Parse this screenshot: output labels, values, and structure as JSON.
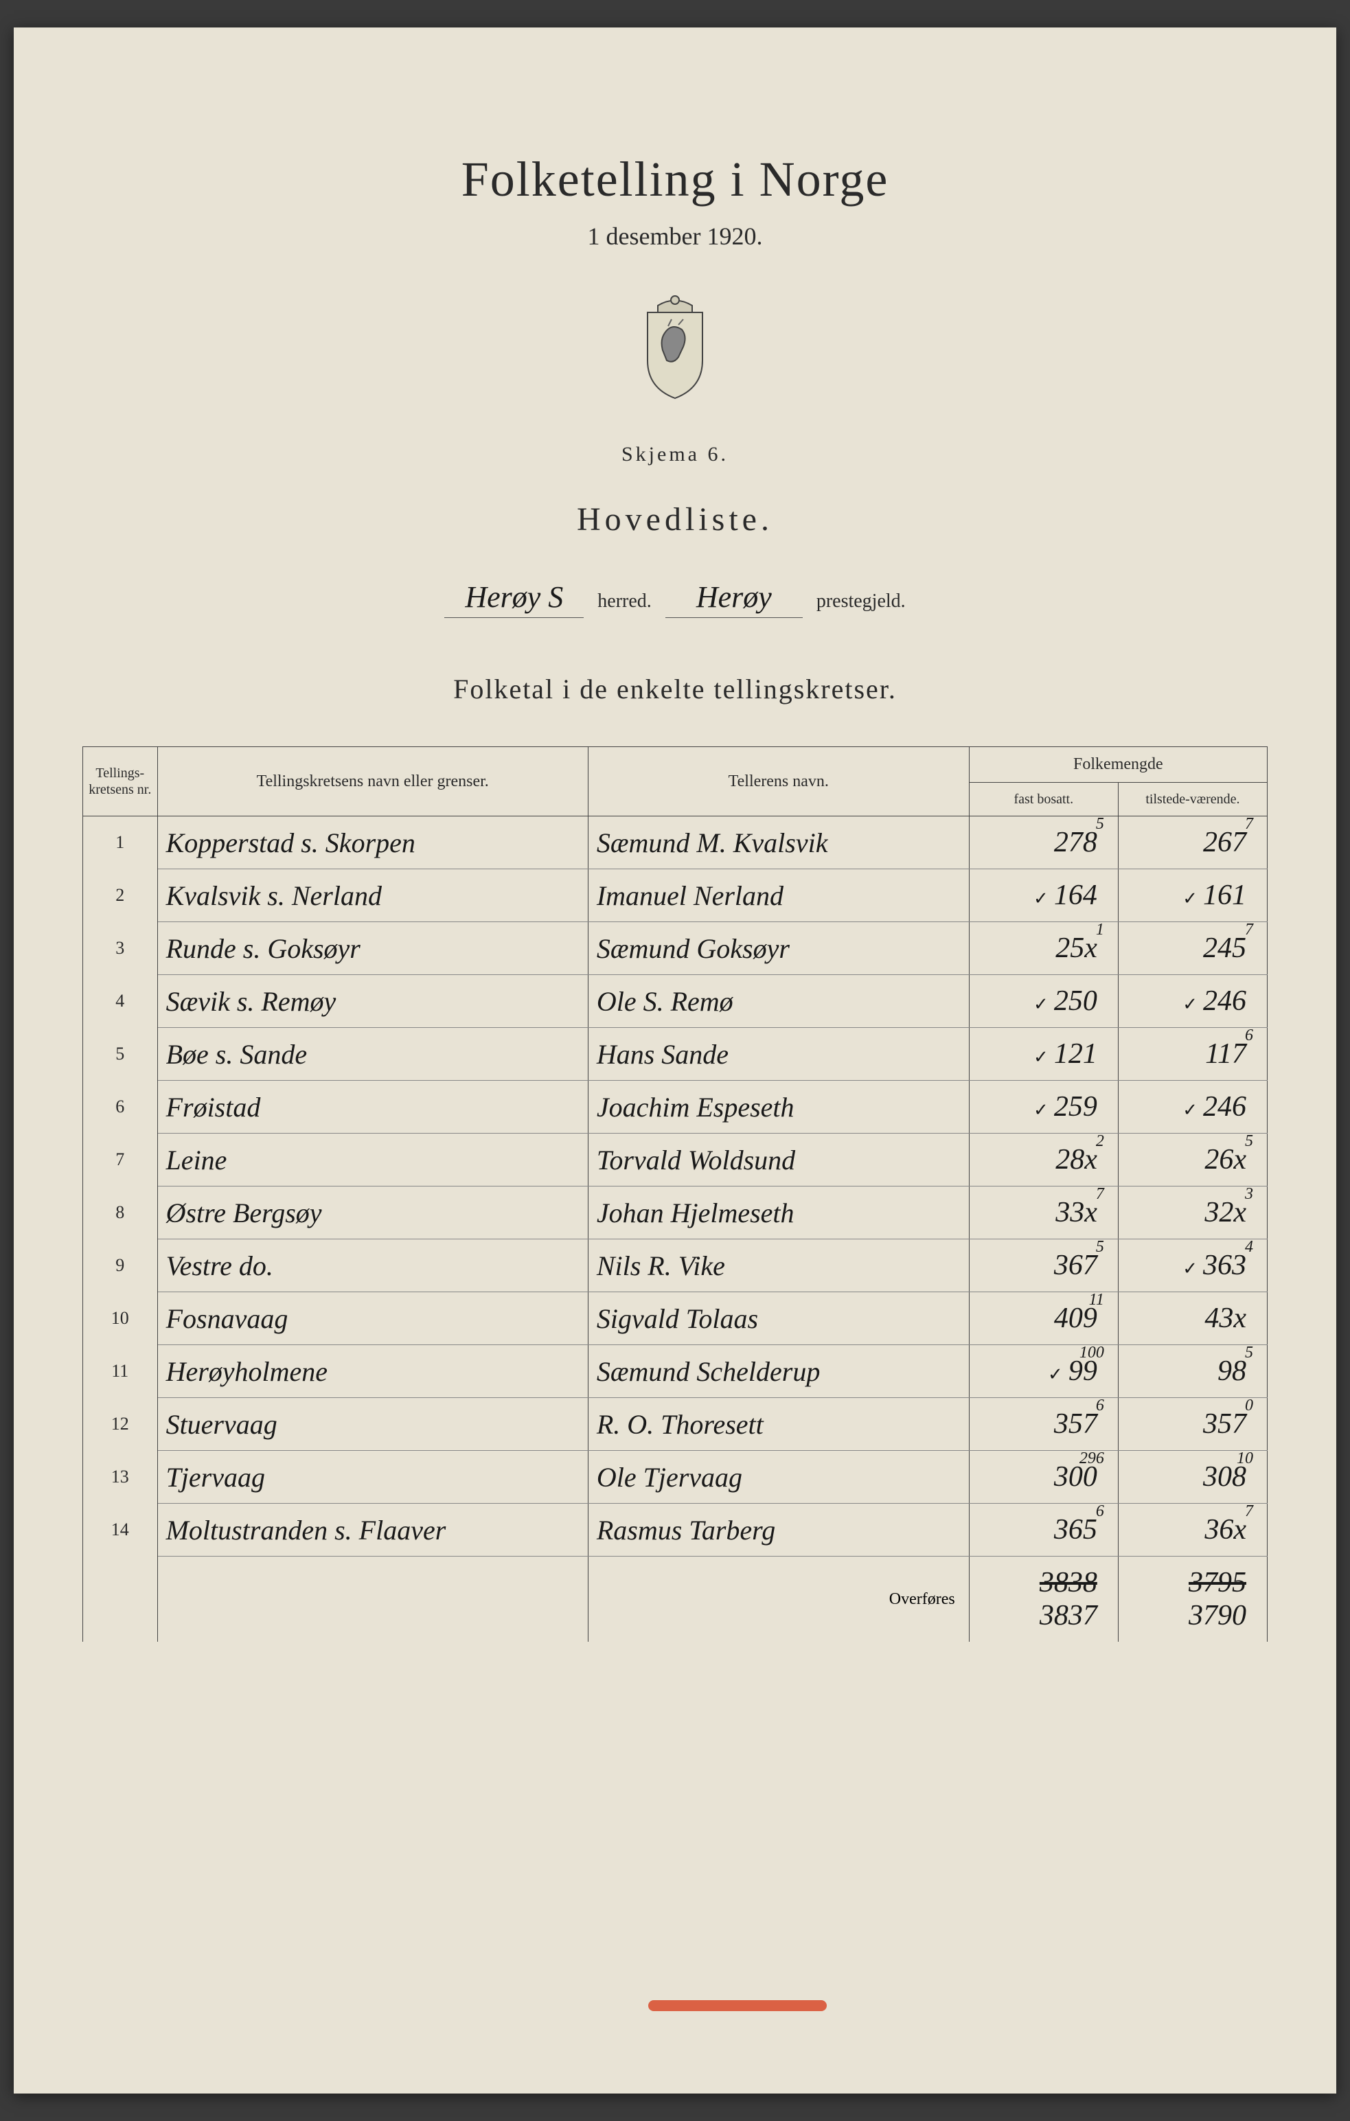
{
  "header": {
    "title": "Folketelling i Norge",
    "date": "1 desember 1920.",
    "schema": "Skjema 6.",
    "doctype": "Hovedliste."
  },
  "location": {
    "herred_value": "Herøy S",
    "herred_label": "herred.",
    "prestegjeld_value": "Herøy",
    "prestegjeld_label": "prestegjeld."
  },
  "table": {
    "title": "Folketal i de enkelte tellingskretser.",
    "headers": {
      "nr": "Tellings-kretsens nr.",
      "krets": "Tellingskretsens navn eller grenser.",
      "teller": "Tellerens navn.",
      "folkemengde": "Folkemengde",
      "bosatt": "fast bosatt.",
      "tilstede": "tilstede-værende."
    },
    "rows": [
      {
        "nr": "1",
        "krets": "Kopperstad s. Skorpen",
        "teller": "Sæmund M. Kvalsvik",
        "bosatt": "278",
        "bosatt_corr": "5",
        "tilstede": "267",
        "tilstede_corr": "7",
        "b_check": false,
        "t_check": false
      },
      {
        "nr": "2",
        "krets": "Kvalsvik s. Nerland",
        "teller": "Imanuel Nerland",
        "bosatt": "164",
        "bosatt_corr": "",
        "tilstede": "161",
        "tilstede_corr": "",
        "b_check": true,
        "t_check": true
      },
      {
        "nr": "3",
        "krets": "Runde s. Goksøyr",
        "teller": "Sæmund Goksøyr",
        "bosatt": "25x",
        "bosatt_corr": "1",
        "tilstede": "245",
        "tilstede_corr": "7",
        "b_check": false,
        "t_check": false
      },
      {
        "nr": "4",
        "krets": "Sævik s. Remøy",
        "teller": "Ole S. Remø",
        "bosatt": "250",
        "bosatt_corr": "",
        "tilstede": "246",
        "tilstede_corr": "",
        "b_check": true,
        "t_check": true
      },
      {
        "nr": "5",
        "krets": "Bøe s. Sande",
        "teller": "Hans Sande",
        "bosatt": "121",
        "bosatt_corr": "",
        "tilstede": "117",
        "tilstede_corr": "6",
        "b_check": true,
        "t_check": false
      },
      {
        "nr": "6",
        "krets": "Frøistad",
        "teller": "Joachim Espeseth",
        "bosatt": "259",
        "bosatt_corr": "",
        "tilstede": "246",
        "tilstede_corr": "",
        "b_check": true,
        "t_check": true
      },
      {
        "nr": "7",
        "krets": "Leine",
        "teller": "Torvald Woldsund",
        "bosatt": "28x",
        "bosatt_corr": "2",
        "tilstede": "26x",
        "tilstede_corr": "5",
        "b_check": false,
        "t_check": false
      },
      {
        "nr": "8",
        "krets": "Østre Bergsøy",
        "teller": "Johan Hjelmeseth",
        "bosatt": "33x",
        "bosatt_corr": "7",
        "tilstede": "32x",
        "tilstede_corr": "3",
        "b_check": false,
        "t_check": false
      },
      {
        "nr": "9",
        "krets": "Vestre   do.",
        "teller": "Nils R. Vike",
        "bosatt": "367",
        "bosatt_corr": "5",
        "tilstede": "363",
        "tilstede_corr": "4",
        "b_check": false,
        "t_check": true
      },
      {
        "nr": "10",
        "krets": "Fosnavaag",
        "teller": "Sigvald Tolaas",
        "bosatt": "409",
        "bosatt_corr": "11",
        "tilstede": "43x",
        "tilstede_corr": "",
        "b_check": false,
        "t_check": false
      },
      {
        "nr": "11",
        "krets": "Herøyholmene",
        "teller": "Sæmund Schelderup",
        "bosatt": "99",
        "bosatt_corr": "100",
        "tilstede": "98",
        "tilstede_corr": "5",
        "b_check": true,
        "t_check": false
      },
      {
        "nr": "12",
        "krets": "Stuervaag",
        "teller": "R. O. Thoresett",
        "bosatt": "357",
        "bosatt_corr": "6",
        "tilstede": "357",
        "tilstede_corr": "0",
        "b_check": false,
        "t_check": false
      },
      {
        "nr": "13",
        "krets": "Tjervaag",
        "teller": "Ole Tjervaag",
        "bosatt": "300",
        "bosatt_corr": "296",
        "tilstede": "308",
        "tilstede_corr": "10",
        "b_check": false,
        "t_check": false
      },
      {
        "nr": "14",
        "krets": "Moltustranden s. Flaaver",
        "teller": "Rasmus Tarberg",
        "bosatt": "365",
        "bosatt_corr": "6",
        "tilstede": "36x",
        "tilstede_corr": "7",
        "b_check": false,
        "t_check": false
      }
    ],
    "footer": {
      "label": "Overføres",
      "bosatt_struck": "3838",
      "bosatt_final": "3837",
      "tilstede_struck": "3795",
      "tilstede_final": "3790"
    }
  },
  "colors": {
    "paper": "#e8e3d5",
    "ink": "#2a2a2a",
    "handwriting": "#1a1a1a",
    "red": "#d84a2a",
    "border": "#444444"
  }
}
